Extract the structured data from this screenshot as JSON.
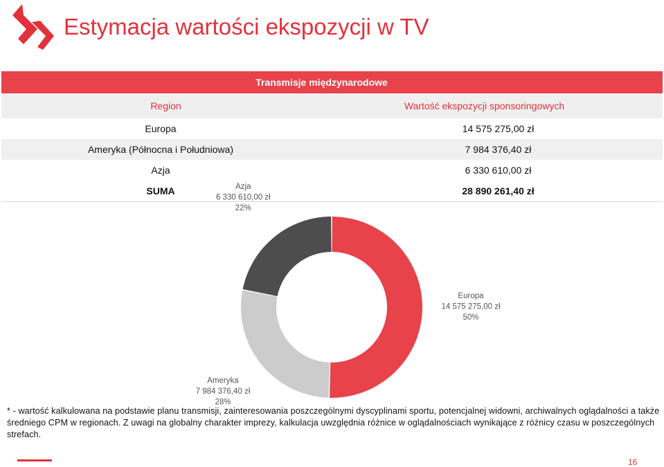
{
  "header": {
    "title": "Estymacja wartości ekspozycji w TV"
  },
  "table": {
    "caption": "Transmisje międzynarodowe",
    "col_region": "Region",
    "col_value": "Wartość ekspozycji sponsoringowych",
    "rows": [
      {
        "region": "Europa",
        "value": "14 575 275,00 zł"
      },
      {
        "region": "Ameryka (Północna i Południowa)",
        "value": "7 984 376,40 zł"
      },
      {
        "region": "Azja",
        "value": "6 330 610,00 zł"
      }
    ],
    "total_label": "SUMA",
    "total_value": "28 890 261,40 zł"
  },
  "chart_data": {
    "type": "pie",
    "donut": true,
    "slices": [
      {
        "label": "Europa",
        "value": 14575275.0,
        "value_label": "14 575 275,00 zł",
        "percent": "50%",
        "color": "#e8424a"
      },
      {
        "label": "Ameryka",
        "value": 7984376.4,
        "value_label": "7 984 376,40 zł",
        "percent": "28%",
        "color": "#cccccc"
      },
      {
        "label": "Azja",
        "value": 6330610.0,
        "value_label": "6 330 610,00 zł",
        "percent": "22%",
        "color": "#4d4d4d"
      }
    ]
  },
  "footnote": "* - wartość kalkulowana na podstawie planu transmisji, zainteresowania poszczególnymi dyscyplinami sportu, potencjalnej widowni, archiwalnych oglądalności a także średniego CPM w regionach. Z uwagi na globalny charakter imprezy, kalkulacja uwzględnia różnice w oglądalnościach wynikające z różnicy czasu w poszczególnych strefach.",
  "page_number": "16",
  "colors": {
    "accent": "#e2313b",
    "header_bg": "#e8424a"
  }
}
